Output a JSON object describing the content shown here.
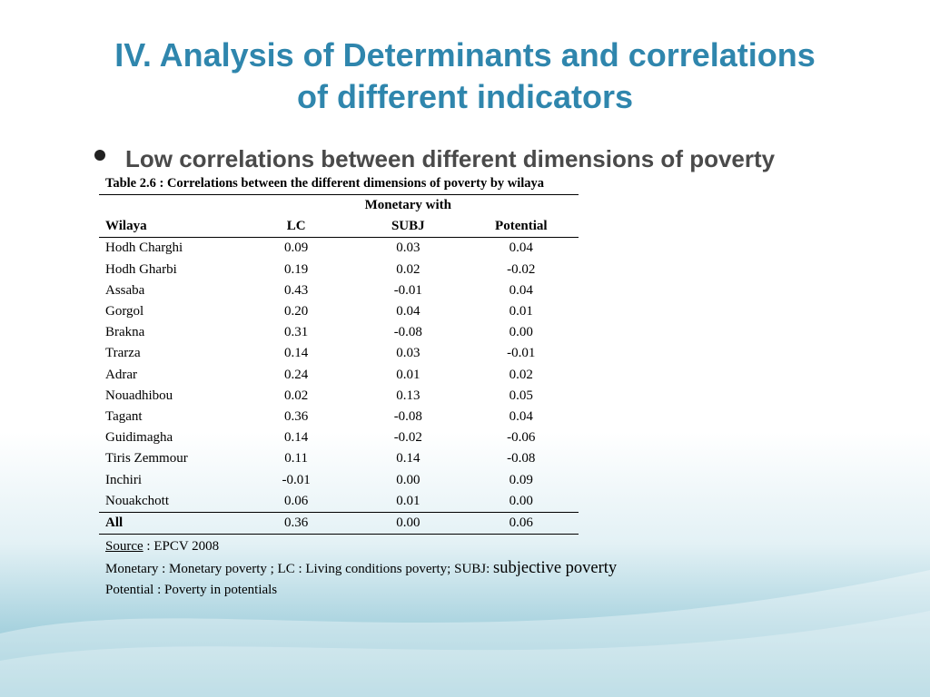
{
  "slide": {
    "title_line1": "IV. Analysis of Determinants and correlations",
    "title_line2": "of different indicators",
    "bullet": "Low correlations between different dimensions of poverty"
  },
  "table": {
    "caption": "Table 2.6 : Correlations between the different dimensions of poverty by wilaya",
    "group_header": "Monetary with",
    "headers": [
      "Wilaya",
      "LC",
      "SUBJ",
      "Potential"
    ],
    "rows": [
      {
        "wilaya": "Hodh Charghi",
        "lc": "0.09",
        "subj": "0.03",
        "potential": "0.04"
      },
      {
        "wilaya": "Hodh Gharbi",
        "lc": "0.19",
        "subj": "0.02",
        "potential": "-0.02"
      },
      {
        "wilaya": "Assaba",
        "lc": "0.43",
        "subj": "-0.01",
        "potential": "0.04"
      },
      {
        "wilaya": "Gorgol",
        "lc": "0.20",
        "subj": "0.04",
        "potential": "0.01"
      },
      {
        "wilaya": "Brakna",
        "lc": "0.31",
        "subj": "-0.08",
        "potential": "0.00"
      },
      {
        "wilaya": "Trarza",
        "lc": "0.14",
        "subj": "0.03",
        "potential": "-0.01"
      },
      {
        "wilaya": "Adrar",
        "lc": "0.24",
        "subj": "0.01",
        "potential": "0.02"
      },
      {
        "wilaya": "Nouadhibou",
        "lc": "0.02",
        "subj": "0.13",
        "potential": "0.05"
      },
      {
        "wilaya": "Tagant",
        "lc": "0.36",
        "subj": "-0.08",
        "potential": "0.04"
      },
      {
        "wilaya": "Guidimagha",
        "lc": "0.14",
        "subj": "-0.02",
        "potential": "-0.06"
      },
      {
        "wilaya": "Tiris Zemmour",
        "lc": "0.11",
        "subj": "0.14",
        "potential": "-0.08"
      },
      {
        "wilaya": "Inchiri",
        "lc": "-0.01",
        "subj": "0.00",
        "potential": "0.09"
      },
      {
        "wilaya": "Nouakchott",
        "lc": "0.06",
        "subj": "0.01",
        "potential": "0.00"
      }
    ],
    "total": {
      "wilaya": "All",
      "lc": "0.36",
      "subj": "0.00",
      "potential": "0.06"
    }
  },
  "notes": {
    "source_label": "Source",
    "source_text": " : EPCV 2008",
    "line2_a": "Monetary : Monetary poverty ; LC : Living conditions poverty; SUBJ: ",
    "line2_b": "subjective poverty",
    "line3": "Potential : Poverty in potentials"
  },
  "colors": {
    "title": "#2f86ad",
    "bullet_text": "#4a4a4a",
    "wave": "#7dbdce"
  }
}
